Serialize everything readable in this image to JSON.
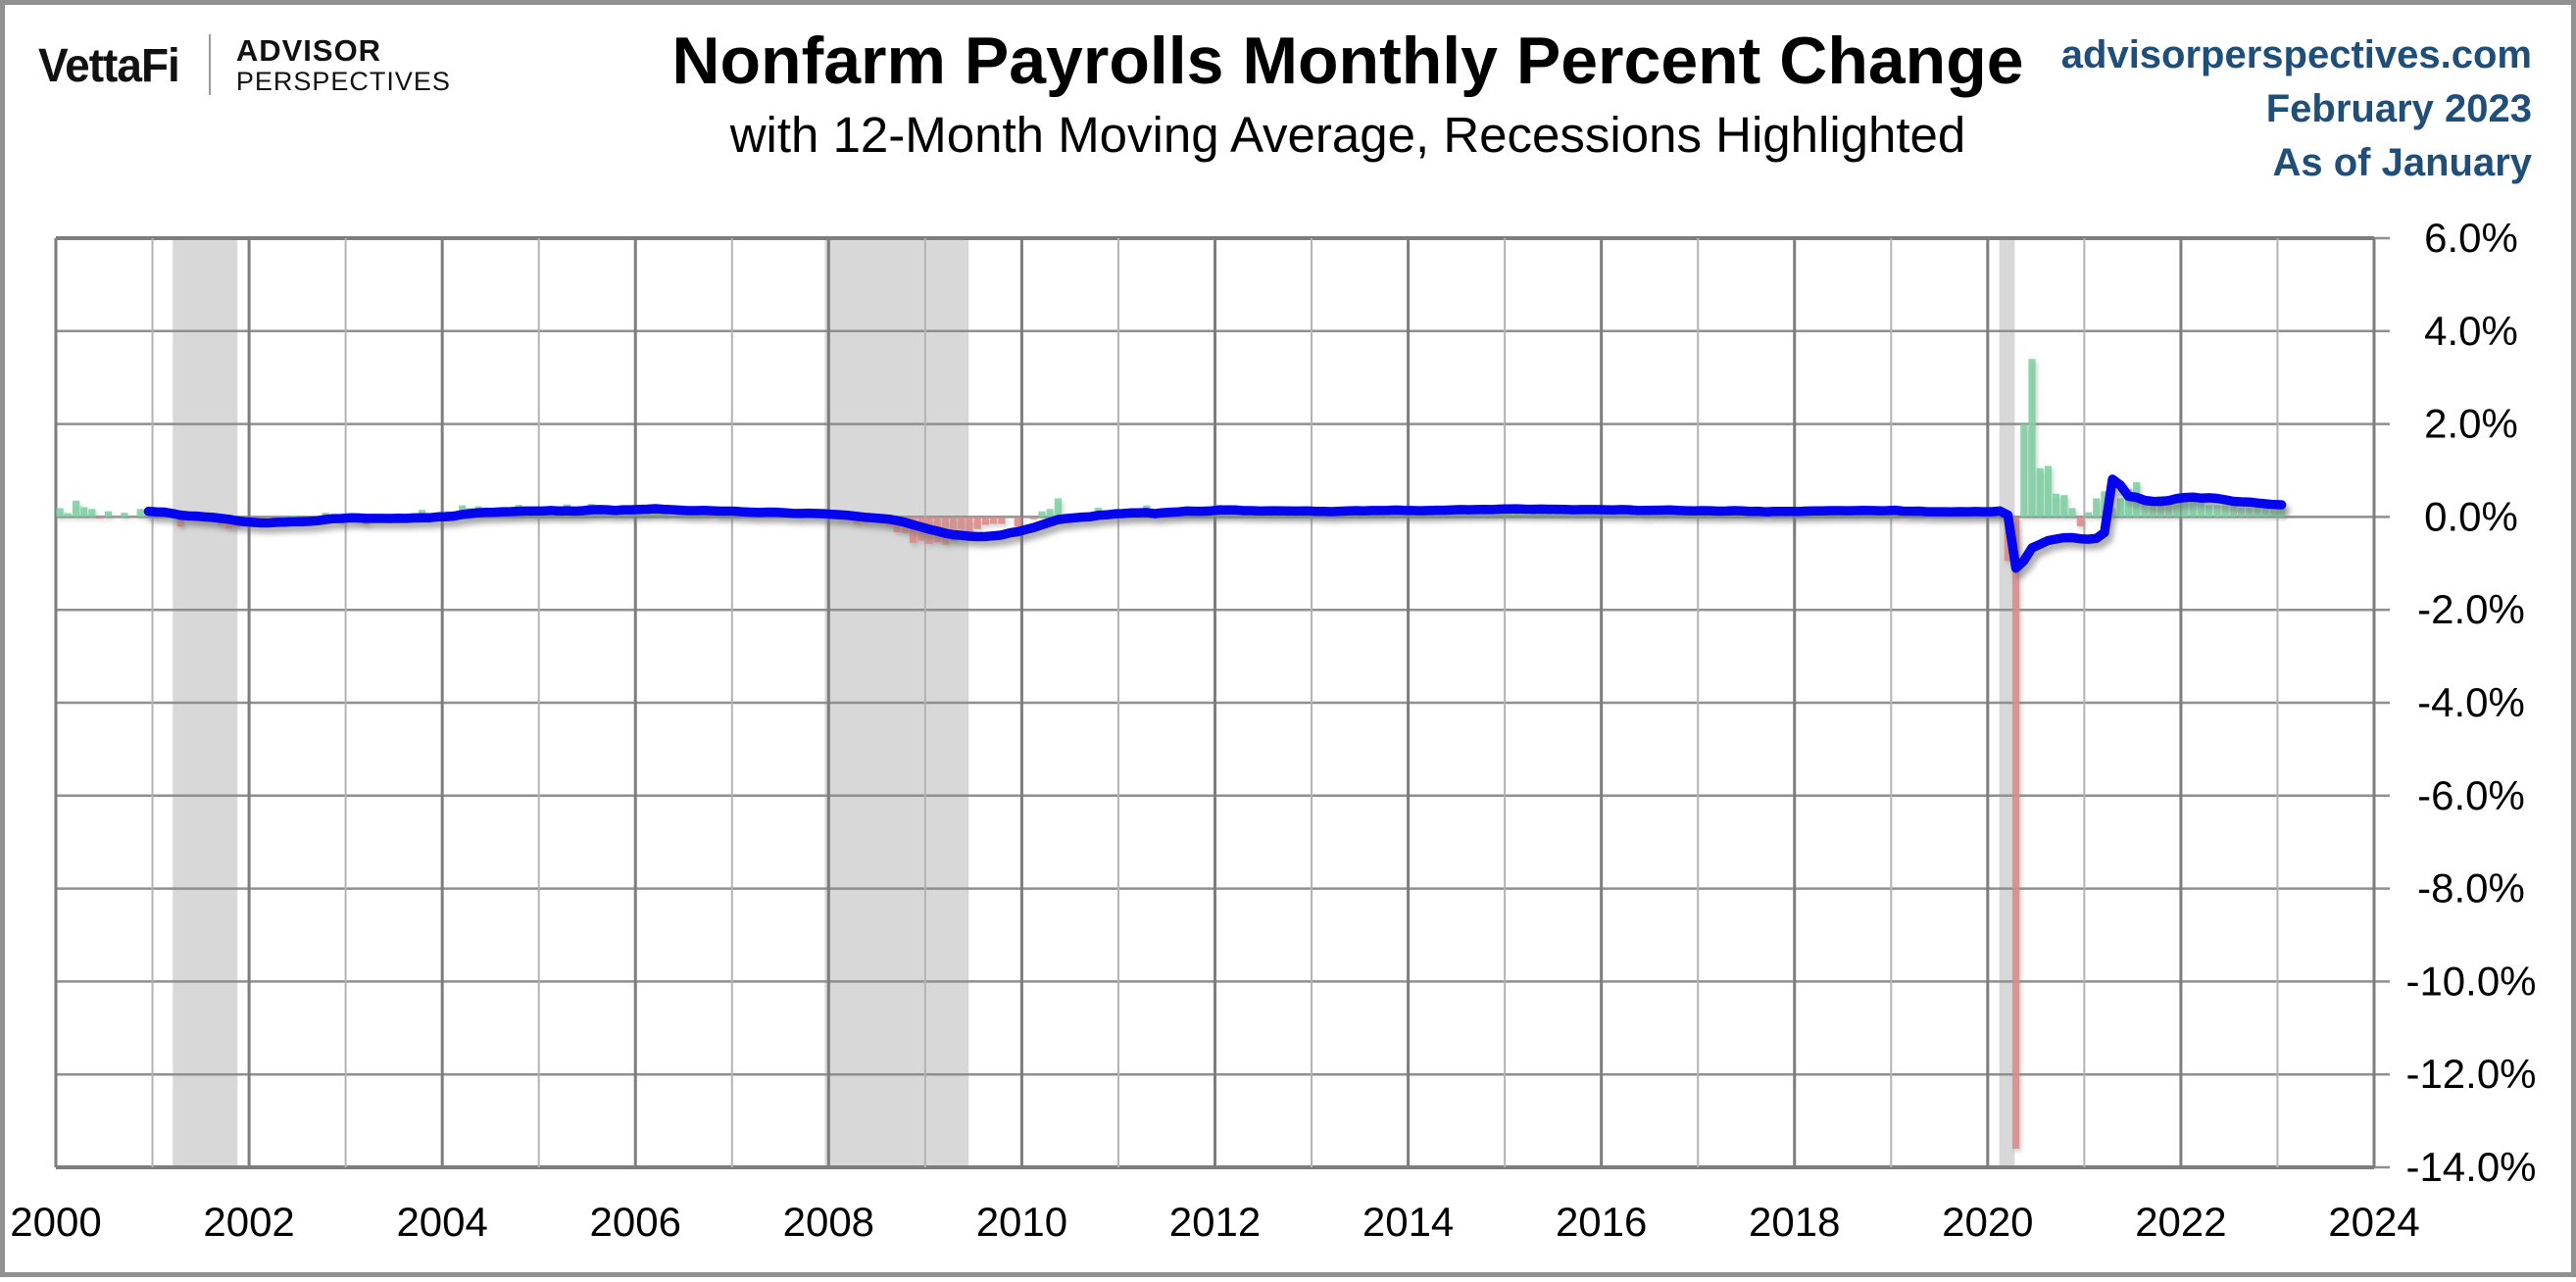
{
  "header": {
    "logo": {
      "brand": "VettaFi",
      "partner_line1": "ADVISOR",
      "partner_line2": "PERSPECTIVES"
    },
    "title": "Nonfarm Payrolls Monthly Percent Change",
    "subtitle": "with 12-Month Moving Average, Recessions Highlighted",
    "source": {
      "site": "advisorperspectives.com",
      "date": "February 2023",
      "asof": "As of January"
    }
  },
  "chart_data": {
    "type": "bar",
    "title": "Nonfarm Payrolls Monthly Percent Change",
    "subtitle": "with 12-Month Moving Average, Recessions Highlighted",
    "bar_series_name": "Monthly percent change",
    "line_series_name": "12-month moving average",
    "moving_average_window": 12,
    "x_start_year": 2000,
    "x_end_year": 2024,
    "x_tick_labels": [
      "2000",
      "2002",
      "2004",
      "2006",
      "2008",
      "2010",
      "2012",
      "2014",
      "2016",
      "2018",
      "2020",
      "2022",
      "2024"
    ],
    "y_tick_labels": [
      "6.0%",
      "4.0%",
      "2.0%",
      "0.0%",
      "-2.0%",
      "-4.0%",
      "-6.0%",
      "-8.0%",
      "-10.0%",
      "-12.0%",
      "-14.0%"
    ],
    "ylim": [
      -14,
      6
    ],
    "grid": true,
    "legend": "none",
    "start_month": "2000-01",
    "end_month": "2023-01",
    "monthly_pct_change": [
      0.19,
      0.08,
      0.35,
      0.21,
      0.17,
      -0.04,
      0.12,
      0.01,
      0.09,
      -0.02,
      0.17,
      0.1,
      0.05,
      0.04,
      -0.02,
      -0.21,
      -0.03,
      -0.09,
      -0.09,
      -0.11,
      -0.18,
      -0.25,
      -0.22,
      -0.13,
      -0.1,
      -0.11,
      -0.02,
      -0.06,
      -0.01,
      0.03,
      -0.07,
      -0.01,
      -0.04,
      0.09,
      0.01,
      -0.12,
      0.07,
      -0.12,
      -0.16,
      -0.04,
      -0.01,
      0.0,
      -0.02,
      -0.03,
      0.08,
      0.15,
      0.01,
      0.09,
      0.12,
      0.03,
      0.25,
      0.19,
      0.23,
      0.06,
      0.03,
      0.09,
      0.12,
      0.26,
      0.05,
      0.1,
      0.1,
      0.18,
      0.1,
      0.27,
      0.13,
      0.18,
      0.28,
      0.14,
      0.05,
      0.06,
      0.25,
      0.12,
      0.2,
      0.23,
      0.21,
      0.13,
      0.02,
      0.06,
      0.15,
      0.13,
      0.1,
      0.0,
      0.15,
      0.12,
      0.17,
      0.06,
      0.13,
      0.06,
      0.1,
      0.05,
      0.02,
      -0.03,
      0.06,
      0.06,
      0.08,
      0.07,
      0.01,
      -0.06,
      -0.05,
      -0.15,
      -0.13,
      -0.12,
      -0.15,
      -0.2,
      -0.33,
      -0.35,
      -0.56,
      -0.51,
      -0.58,
      -0.55,
      -0.6,
      -0.52,
      -0.27,
      -0.36,
      -0.26,
      -0.17,
      -0.15,
      -0.15,
      -0.01,
      -0.21,
      -0.02,
      -0.05,
      0.12,
      0.17,
      0.4,
      -0.1,
      -0.05,
      -0.01,
      -0.03,
      0.2,
      0.1,
      0.05,
      0.05,
      0.13,
      0.16,
      0.25,
      0.08,
      0.16,
      0.08,
      0.09,
      0.17,
      0.14,
      0.1,
      0.15,
      0.26,
      0.17,
      0.18,
      0.05,
      0.08,
      0.06,
      0.12,
      0.11,
      0.13,
      0.12,
      0.1,
      0.16,
      0.15,
      0.19,
      0.1,
      0.15,
      0.16,
      0.13,
      0.08,
      0.18,
      0.13,
      0.15,
      0.2,
      0.06,
      0.12,
      0.13,
      0.16,
      0.22,
      0.16,
      0.21,
      0.17,
      0.15,
      0.18,
      0.16,
      0.19,
      0.18,
      0.15,
      0.18,
      0.06,
      0.18,
      0.22,
      0.15,
      0.18,
      0.11,
      0.1,
      0.21,
      0.19,
      0.18,
      0.08,
      0.16,
      0.15,
      0.11,
      0.03,
      0.19,
      0.22,
      0.12,
      0.16,
      0.09,
      0.11,
      0.13,
      0.15,
      0.14,
      0.05,
      0.12,
      0.13,
      0.12,
      0.13,
      0.14,
      0.01,
      0.18,
      0.14,
      0.12,
      0.12,
      0.23,
      0.12,
      0.12,
      0.18,
      0.14,
      0.1,
      0.15,
      0.07,
      0.15,
      0.1,
      0.15,
      0.21,
      0.0,
      0.1,
      0.14,
      0.04,
      0.12,
      0.1,
      0.13,
      0.12,
      0.12,
      0.17,
      0.1,
      0.21,
      0.19,
      -0.95,
      -13.6,
      2.0,
      3.4,
      1.05,
      1.1,
      0.5,
      0.47,
      0.19,
      -0.2,
      0.1,
      0.4,
      0.55,
      0.19,
      0.4,
      0.6,
      0.75,
      0.33,
      0.25,
      0.45,
      0.4,
      0.35,
      0.35,
      0.5,
      0.3,
      0.25,
      0.25,
      0.25,
      0.35,
      0.2,
      0.2,
      0.2,
      0.18,
      0.15,
      0.3
    ],
    "recessions": [
      {
        "from": 2001.21,
        "to": 2001.88
      },
      {
        "from": 2007.96,
        "to": 2009.45
      },
      {
        "from": 2020.12,
        "to": 2020.28
      }
    ],
    "colors": {
      "positive_bar": "#7fd0a4",
      "negative_bar": "#dd8a87",
      "line": "#0404ee",
      "recession_band": "#d8d8d8",
      "grid_major": "#7d7d7d",
      "grid_minor": "#b3b3b3",
      "grid_h": "#8f8f8f",
      "header_blue": "#1f4e79"
    }
  }
}
